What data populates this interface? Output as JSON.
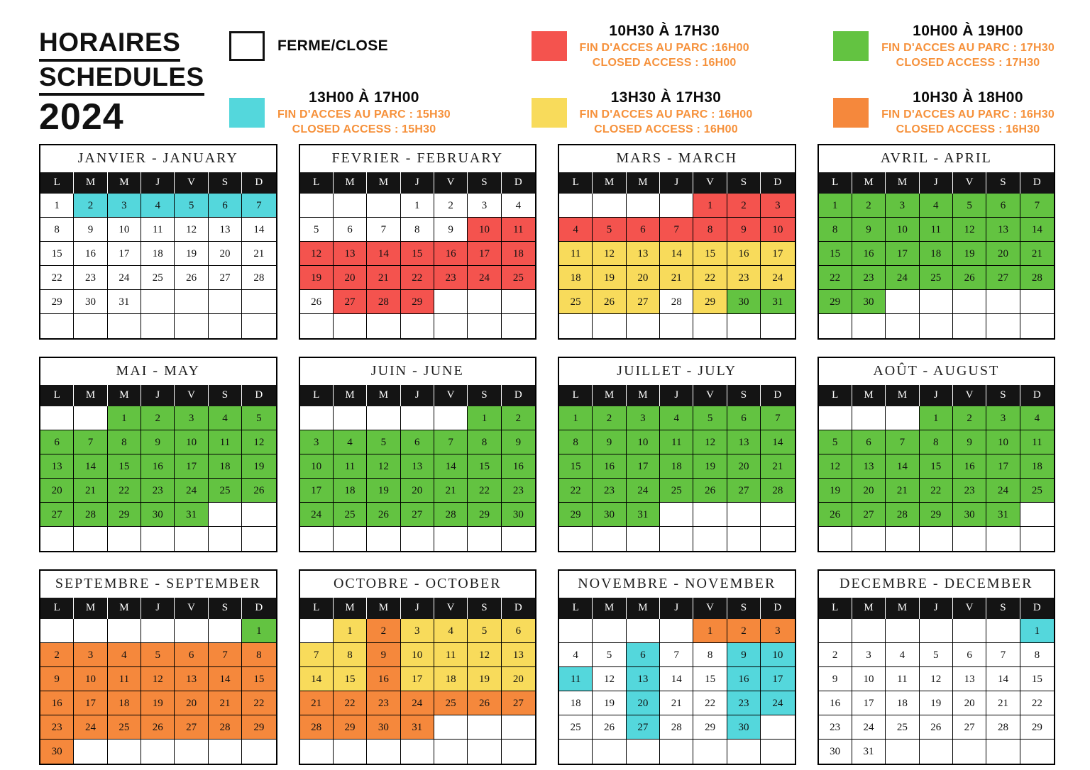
{
  "title": {
    "line1": "HORAIRES",
    "line2": "SCHEDULES",
    "year": "2024"
  },
  "legend": {
    "text_color": "#F6913B",
    "items": [
      {
        "swatch": "white-swatch",
        "color": "#FFFFFF",
        "bordered": true,
        "label": "FERME/CLOSE",
        "sub1": "",
        "sub2": ""
      },
      {
        "swatch": "cyan-swatch",
        "color": "#54D7DC",
        "bordered": false,
        "label": "13H00 À 17H00",
        "sub1": "FIN D'ACCES AU PARC : 15H30",
        "sub2": "CLOSED ACCESS : 15H30"
      },
      {
        "swatch": "red-swatch",
        "color": "#F4534E",
        "bordered": false,
        "label": "10H30 À 17H30",
        "sub1": "FIN D'ACCES AU PARC :16H00",
        "sub2": "CLOSED ACCESS : 16H00"
      },
      {
        "swatch": "yellow-swatch",
        "color": "#F8DB5B",
        "bordered": false,
        "label": "13H30 À 17H30",
        "sub1": "FIN D'ACCES AU PARC : 16H00",
        "sub2": "CLOSED ACCESS : 16H00"
      },
      {
        "swatch": "green-swatch",
        "color": "#63C341",
        "bordered": false,
        "label": "10H00 À 19H00",
        "sub1": "FIN D'ACCES AU PARC : 17H30",
        "sub2": "CLOSED ACCESS : 17H30"
      },
      {
        "swatch": "orange-swatch",
        "color": "#F5883C",
        "bordered": false,
        "label": "10H30 À 18H00",
        "sub1": "FIN D'ACCES AU PARC : 16H30",
        "sub2": "CLOSED ACCESS : 16H30"
      }
    ]
  },
  "weekday_headers": [
    "L",
    "M",
    "M",
    "J",
    "V",
    "S",
    "D"
  ],
  "color_key": {
    "w": "#FFFFFF",
    "c": "#54D7DC",
    "r": "#F4534E",
    "y": "#F8DB5B",
    "g": "#63C341",
    "o": "#F5883C"
  },
  "color_names": {
    "w": "ferme-close",
    "c": "13h00-17h00",
    "r": "10h30-17h30",
    "y": "13h30-17h30",
    "g": "10h00-19h00",
    "o": "10h30-18h00"
  },
  "months": [
    {
      "name": "JANVIER - JANUARY",
      "start": 0,
      "days": 31,
      "colors": "wccccccwwwwwwwwwwwwwwwwwwwwwwww"
    },
    {
      "name": "FEVRIER - FEBRUARY",
      "start": 3,
      "days": 29,
      "colors": "wwwwwwwwwrrrrrrrrrrrrrrrrwrrr"
    },
    {
      "name": "MARS - MARCH",
      "start": 4,
      "days": 31,
      "colors": "rrrrrrrrrryyyyyyyyyyyyyyyyywygg"
    },
    {
      "name": "AVRIL - APRIL",
      "start": 0,
      "days": 30,
      "colors": "gggggggggggggggggggggggggggggg"
    },
    {
      "name": "MAI - MAY",
      "start": 2,
      "days": 31,
      "colors": "ggggggggggggggggggggggggggggggg"
    },
    {
      "name": "JUIN - JUNE",
      "start": 5,
      "days": 30,
      "colors": "gggggggggggggggggggggggggggggg"
    },
    {
      "name": "JUILLET - JULY",
      "start": 0,
      "days": 31,
      "colors": "ggggggggggggggggggggggggggggggg"
    },
    {
      "name": "AOÛT - AUGUST",
      "start": 3,
      "days": 31,
      "colors": "ggggggggggggggggggggggggggggggg"
    },
    {
      "name": "SEPTEMBRE - SEPTEMBER",
      "start": 6,
      "days": 30,
      "colors": "gooooooooooooooooooooooooooooo"
    },
    {
      "name": "OCTOBRE - OCTOBER",
      "start": 1,
      "days": 31,
      "colors": "yoyyyyyyoyyyyyyoyyyyooooooooooo"
    },
    {
      "name": "NOVEMBRE - NOVEMBER",
      "start": 4,
      "days": 30,
      "colors": "ooowwcwwcccwcwwccwwcwwccwwcwwc"
    },
    {
      "name": "DECEMBRE - DECEMBER",
      "start": 6,
      "days": 31,
      "colors": "cwwwwwwwwwwwwwwwwwwwwwwwwwwwwww"
    }
  ]
}
